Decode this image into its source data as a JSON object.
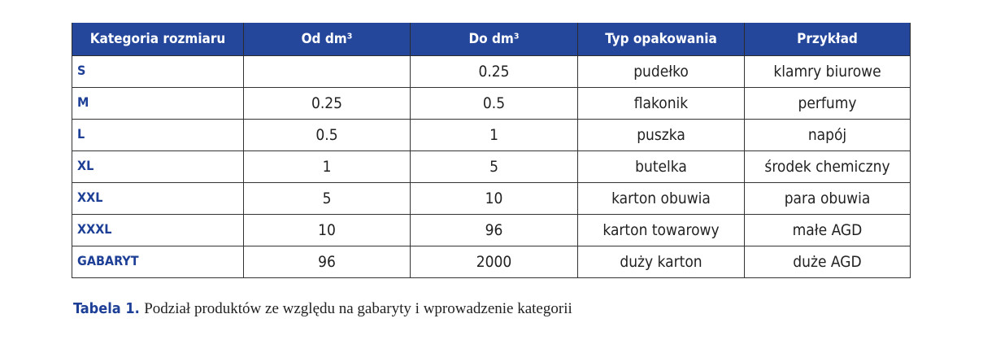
{
  "table": {
    "header": [
      "Kategoria rozmiaru",
      "Od dm³",
      "Do dm³",
      "Typ opakowania",
      "Przykład"
    ],
    "rows": [
      [
        "S",
        null,
        "0.25",
        "pudełko",
        "klamry biurowe"
      ],
      [
        "M",
        "0.25",
        "0.5",
        "flakonik",
        "perfumy"
      ],
      [
        "L",
        "0.5",
        "1",
        "puszka",
        "napój"
      ],
      [
        "XL",
        "1",
        "5",
        "butelka",
        "środek chemiczny"
      ],
      [
        "XXL",
        "5",
        "10",
        "karton obuwia",
        "para obuwia"
      ],
      [
        "XXXL",
        "10",
        "96",
        "karton towarowy",
        "małe AGD"
      ],
      [
        "GABARYT",
        "96",
        "2000",
        "duży karton",
        "duże AGD"
      ]
    ]
  },
  "caption": {
    "label": "Tabela 1.",
    "text": "Podział produktów ze względu na gabaryty i wprowadzenie kategorii"
  }
}
